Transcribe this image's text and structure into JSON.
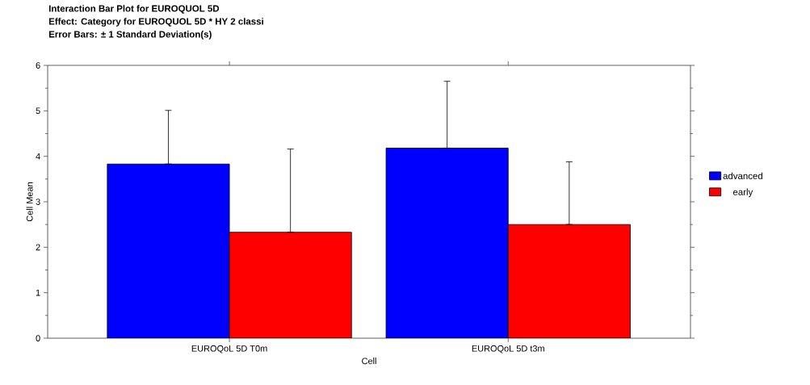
{
  "chart_data": {
    "type": "bar",
    "title": "Interaction Bar Plot for EUROQUOL 5D",
    "subtitle": "Effect: Category for EUROQUOL 5D * HY 2 classi",
    "annotations": [
      "Error Bars: ± 1 Standard Deviation(s)"
    ],
    "xlabel": "Cell",
    "ylabel": "Cell Mean",
    "categories": [
      "EUROQoL 5D T0m",
      "EUROQoL 5D t3m"
    ],
    "series": [
      {
        "name": "advanced",
        "color": "#0000ff",
        "values": [
          3.83,
          4.18
        ],
        "errors": [
          [
            3.83,
            5.01
          ],
          [
            4.18,
            5.65
          ]
        ]
      },
      {
        "name": "early",
        "color": "#ff0000",
        "values": [
          2.33,
          2.5
        ],
        "errors": [
          [
            2.33,
            4.16
          ],
          [
            2.5,
            3.88
          ]
        ]
      }
    ],
    "ylim": [
      0,
      6
    ],
    "yticks": [
      0,
      1,
      2,
      3,
      4,
      5,
      6
    ],
    "legend": "right"
  }
}
